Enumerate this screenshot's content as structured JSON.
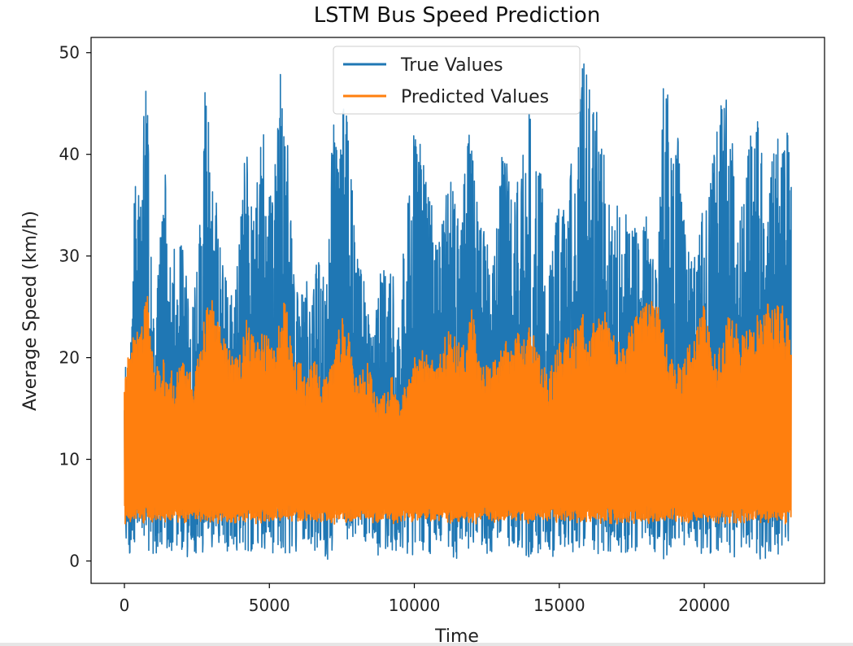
{
  "chart_data": {
    "type": "line",
    "title": "LSTM Bus Speed Prediction",
    "xlabel": "Time",
    "ylabel": "Average Speed (km/h)",
    "xlim": [
      -1150,
      24150
    ],
    "ylim": [
      -2.2,
      51.5
    ],
    "xticks": [
      0,
      5000,
      10000,
      15000,
      20000
    ],
    "yticks": [
      0,
      10,
      20,
      30,
      40,
      50
    ],
    "grid": false,
    "legend_position": "top-center",
    "x_range": [
      0,
      23000
    ],
    "series": [
      {
        "name": "True Values",
        "color": "#1f77b4",
        "style": "dense oscillating signal",
        "x": [
          0,
          100,
          200,
          300,
          400,
          500,
          600,
          700,
          800,
          900,
          1000,
          1200,
          1400,
          1600,
          1800,
          2000,
          2200,
          2400,
          2600,
          2800,
          3000,
          3200,
          3400,
          3600,
          3800,
          4000,
          4200,
          4400,
          4600,
          4800,
          5000,
          5200,
          5400,
          5600,
          5800,
          6000,
          6200,
          6400,
          6600,
          6800,
          7000,
          7200,
          7400,
          7600,
          7800,
          8000,
          8200,
          8400,
          8600,
          8800,
          9000,
          9200,
          9400,
          9600,
          9800,
          10000,
          10200,
          10400,
          10600,
          10800,
          11000,
          11200,
          11400,
          11600,
          11800,
          12000,
          12200,
          12400,
          12600,
          12800,
          13000,
          13200,
          13400,
          13600,
          13800,
          14000,
          14200,
          14400,
          14600,
          14800,
          15000,
          15200,
          15400,
          15600,
          15800,
          16000,
          16200,
          16400,
          16600,
          16800,
          17000,
          17200,
          17400,
          17600,
          17800,
          18000,
          18200,
          18400,
          18600,
          18800,
          19000,
          19200,
          19400,
          19600,
          19800,
          20000,
          20200,
          20400,
          20600,
          20800,
          21000,
          21200,
          21400,
          21600,
          21800,
          22000,
          22200,
          22400,
          22600,
          22800,
          23000
        ],
        "upper": [
          17,
          26.5,
          20,
          35,
          41,
          37,
          46.5,
          46.5,
          46.8,
          35,
          24,
          31,
          39.5,
          28,
          33,
          32,
          26,
          27,
          34,
          47.5,
          40,
          35,
          30,
          28,
          26,
          33,
          42,
          35,
          39,
          43,
          36,
          40,
          48.8,
          44,
          30,
          26,
          28,
          27,
          30,
          30,
          27,
          44.7,
          38,
          47.7,
          40,
          30,
          29,
          24.7,
          22,
          28,
          30,
          31,
          23,
          30,
          36,
          43,
          41.7,
          38,
          35,
          31,
          34,
          38.7,
          36,
          32,
          42,
          44.5,
          34,
          33,
          30,
          32,
          40,
          41,
          36,
          38,
          42,
          44.5,
          38.8,
          38.5,
          26,
          33,
          35,
          35.5,
          40,
          45.7,
          49.2,
          49,
          45.5,
          43,
          39,
          33,
          37.5,
          34,
          35,
          33,
          32,
          34,
          30,
          29,
          47.8,
          46,
          44,
          39,
          31,
          30,
          33,
          35,
          37.5,
          44,
          46.8,
          47,
          41,
          33,
          38,
          44.2,
          45.5,
          40,
          41,
          43.5,
          44.6,
          43.5,
          39.7
        ],
        "lower": [
          3,
          0.2,
          0.3,
          2,
          0.5,
          1,
          0.5,
          2,
          0,
          1,
          0.5,
          1,
          0,
          0.3,
          1,
          0,
          0.5,
          1,
          0.3,
          1,
          0,
          2,
          0.5,
          1,
          0,
          0.3,
          1,
          0.3,
          0.5,
          1,
          0.5,
          1,
          1,
          0.5,
          0,
          1,
          2,
          0.3,
          1,
          0.5,
          0,
          1,
          0.3,
          0.5,
          1,
          0,
          1,
          0.5,
          1,
          0.3,
          0.8,
          1,
          0.4,
          1,
          0,
          0.5,
          1,
          1,
          0.3,
          0.8,
          1,
          0.8,
          0,
          0.4,
          1,
          0.5,
          1,
          0.3,
          0.5,
          1,
          1,
          0.3,
          0.5,
          1,
          0.5,
          0.2,
          0.7,
          1,
          1,
          0.3,
          0.5,
          1,
          0.4,
          1,
          0.5,
          0.3,
          1,
          0.6,
          0.3,
          0.8,
          1,
          0.5,
          0.3,
          0.8,
          1,
          0.3,
          1,
          0.6,
          0.2,
          0.5,
          0.8,
          0.3,
          1,
          0.6,
          0.2,
          0.8,
          0.3,
          1,
          0.5,
          0.2,
          0.3,
          0.2,
          0.5,
          0.2,
          0.3,
          0.1,
          0.2,
          0.3,
          0.2,
          0.5,
          0.2
        ]
      },
      {
        "name": "Predicted Values",
        "color": "#ff7f0e",
        "style": "dense oscillating signal",
        "x": [
          0,
          100,
          200,
          300,
          400,
          500,
          600,
          700,
          800,
          900,
          1000,
          1200,
          1400,
          1600,
          1800,
          2000,
          2200,
          2400,
          2600,
          2800,
          3000,
          3200,
          3400,
          3600,
          3800,
          4000,
          4200,
          4400,
          4600,
          4800,
          5000,
          5200,
          5400,
          5600,
          5800,
          6000,
          6200,
          6400,
          6600,
          6800,
          7000,
          7200,
          7400,
          7600,
          7800,
          8000,
          8200,
          8400,
          8600,
          8800,
          9000,
          9200,
          9400,
          9600,
          9800,
          10000,
          10200,
          10400,
          10600,
          10800,
          11000,
          11200,
          11400,
          11600,
          11800,
          12000,
          12200,
          12400,
          12600,
          12800,
          13000,
          13200,
          13400,
          13600,
          13800,
          14000,
          14200,
          14400,
          14600,
          14800,
          15000,
          15200,
          15400,
          15600,
          15800,
          16000,
          16200,
          16400,
          16600,
          16800,
          17000,
          17200,
          17400,
          17600,
          17800,
          18000,
          18200,
          18400,
          18600,
          18800,
          19000,
          19200,
          19400,
          19600,
          19800,
          20000,
          20200,
          20400,
          20600,
          20800,
          21000,
          21200,
          21400,
          21600,
          21800,
          22000,
          22200,
          22400,
          22600,
          22800,
          23000
        ],
        "upper": [
          17,
          21,
          21,
          22,
          23,
          22,
          24,
          25,
          26.5,
          23,
          19,
          20,
          20,
          19,
          19,
          20,
          19,
          18,
          21,
          24.5,
          26,
          24,
          22,
          21,
          20,
          21,
          24,
          23,
          22,
          22.5,
          22,
          21,
          25.5,
          26,
          20,
          20,
          19,
          19,
          20,
          18,
          19,
          20,
          23,
          25.5,
          21,
          18,
          19,
          20,
          17,
          16,
          17,
          19,
          16,
          17,
          18,
          20,
          21,
          20.5,
          20,
          20,
          22,
          24,
          23,
          21,
          21.5,
          25.5,
          20,
          20,
          19,
          20,
          21,
          22,
          21,
          23,
          22,
          24.5,
          21,
          20,
          18,
          20,
          21.5,
          22,
          22.5,
          23,
          24.5,
          22,
          24,
          26,
          24.5,
          23,
          22,
          21,
          23,
          24.5,
          25.5,
          26,
          25.5,
          26.2,
          23,
          20,
          20,
          19,
          21,
          21.5,
          24,
          25.5,
          22,
          20,
          22,
          24,
          24.5,
          23,
          22,
          24,
          24.5,
          25,
          25.5,
          25,
          26,
          25,
          22
        ]
      }
    ]
  }
}
